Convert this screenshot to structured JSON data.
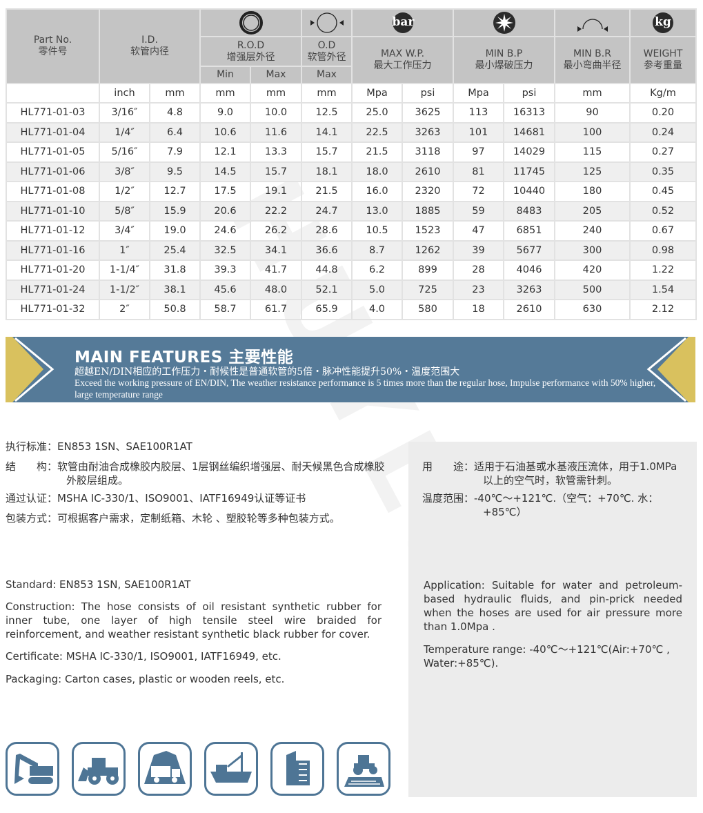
{
  "table": {
    "part_no": {
      "en": "Part No.",
      "cn": "零件号"
    },
    "id": {
      "en": "I.D.",
      "cn": "软管内径"
    },
    "rod": {
      "en": "R.O.D",
      "cn": "增强层外径",
      "min": "Min",
      "max": "Max"
    },
    "od": {
      "en": "O.D",
      "cn": "软管外径",
      "max": "Max"
    },
    "wp": {
      "en": "MAX W.P.",
      "cn": "最大工作压力",
      "icon": "bar"
    },
    "bp": {
      "en": "MIN B.P",
      "cn": "最小爆破压力"
    },
    "br": {
      "en": "MIN B.R",
      "cn": "最小弯曲半径"
    },
    "wt": {
      "en": "WEIGHT",
      "cn": "参考重量",
      "icon": "kg"
    },
    "units": [
      "",
      "inch",
      "mm",
      "mm",
      "mm",
      "mm",
      "Mpa",
      "psi",
      "Mpa",
      "psi",
      "mm",
      "Kg/m"
    ],
    "rows": [
      [
        "HL771-01-03",
        "3/16″",
        "4.8",
        "9.0",
        "10.0",
        "12.5",
        "25.0",
        "3625",
        "113",
        "16313",
        "90",
        "0.20"
      ],
      [
        "HL771-01-04",
        "1/4″",
        "6.4",
        "10.6",
        "11.6",
        "14.1",
        "22.5",
        "3263",
        "101",
        "14681",
        "100",
        "0.24"
      ],
      [
        "HL771-01-05",
        "5/16″",
        "7.9",
        "12.1",
        "13.3",
        "15.7",
        "21.5",
        "3118",
        "97",
        "14029",
        "115",
        "0.27"
      ],
      [
        "HL771-01-06",
        "3/8″",
        "9.5",
        "14.5",
        "15.7",
        "18.1",
        "18.0",
        "2610",
        "81",
        "11745",
        "125",
        "0.35"
      ],
      [
        "HL771-01-08",
        "1/2″",
        "12.7",
        "17.5",
        "19.1",
        "21.5",
        "16.0",
        "2320",
        "72",
        "10440",
        "180",
        "0.45"
      ],
      [
        "HL771-01-10",
        "5/8″",
        "15.9",
        "20.6",
        "22.2",
        "24.7",
        "13.0",
        "1885",
        "59",
        "8483",
        "205",
        "0.52"
      ],
      [
        "HL771-01-12",
        "3/4″",
        "19.0",
        "24.6",
        "26.2",
        "28.6",
        "10.5",
        "1523",
        "47",
        "6851",
        "240",
        "0.67"
      ],
      [
        "HL771-01-16",
        "1″",
        "25.4",
        "32.5",
        "34.1",
        "36.6",
        "8.7",
        "1262",
        "39",
        "5677",
        "300",
        "0.98"
      ],
      [
        "HL771-01-20",
        "1-1/4″",
        "31.8",
        "39.3",
        "41.7",
        "44.8",
        "6.2",
        "899",
        "28",
        "4046",
        "420",
        "1.22"
      ],
      [
        "HL771-01-24",
        "1-1/2″",
        "38.1",
        "45.6",
        "48.0",
        "52.1",
        "5.0",
        "725",
        "23",
        "3263",
        "500",
        "1.54"
      ],
      [
        "HL771-01-32",
        "2″",
        "50.8",
        "58.7",
        "61.7",
        "65.9",
        "4.0",
        "580",
        "18",
        "2610",
        "630",
        "2.12"
      ]
    ]
  },
  "banner": {
    "title": "MAIN FEATURES 主要性能",
    "cn": "超越EN/DIN相应的工作压力・耐候性是普通软管的5倍・脉冲性能提升50%・温度范围大",
    "en": "Exceed the working pressure of EN/DIN, The weather resistance performance is 5 times more than the regular hose, Impulse performance with 50% higher, large temperature range",
    "colors": {
      "bg": "#557a98",
      "accent": "#d9c15e"
    }
  },
  "cn_left": {
    "standard": "执行标准：EN853 1SN、SAE100R1AT",
    "construction": "结　　构：软管由耐油合成橡胶内胶层、1层钢丝编织增强层、耐天候黑色合成橡胶外胶层组成。",
    "certificate": "通过认证：MSHA IC-330/1、ISO9001、IATF16949认证等证书",
    "packaging": "包装方式：可根据客户需求，定制纸箱、木轮 、塑胶轮等多种包装方式。"
  },
  "cn_right": {
    "application": "用　　途：适用于石油基或水基液压流体，用于1.0MPa以上的空气时，软管需针刺。",
    "temperature": "温度范围：-40℃～+121℃.（空气：+70℃. 水：+85℃）"
  },
  "en_left": {
    "standard": "Standard: EN853 1SN, SAE100R1AT",
    "construction": "Construction: The hose consists of oil resistant synthetic rubber for inner tube, one layer of high tensile steel wire braided for reinforcement, and weather resistant synthetic black rubber for cover.",
    "certificate": "Certificate: MSHA IC-330/1, ISO9001, IATF16949,  etc.",
    "packaging": "Packaging: Carton cases, plastic or wooden reels, etc."
  },
  "en_right": {
    "application": "Application: Suitable for water and petroleum-based hydraulic fluids, and pin-prick needed when the hoses are used for air pressure more than 1.0Mpa .",
    "temperature": "Temperature range: -40℃～+121℃(Air:+70℃ , Water:+85℃)."
  },
  "watermark": "HUYLONE",
  "application_icons": [
    "excavator-icon",
    "wheel-loader-icon",
    "mining-truck-icon",
    "ship-icon",
    "building-icon",
    "tractor-farm-icon"
  ]
}
